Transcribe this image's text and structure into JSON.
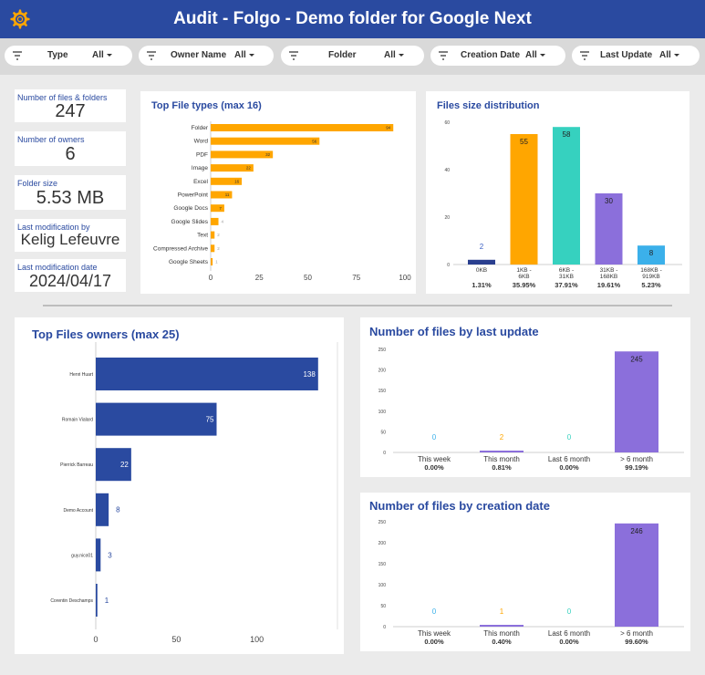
{
  "header": {
    "title": "Audit - Folgo - Demo folder for Google Next"
  },
  "filters": [
    {
      "label": "Type",
      "value": "All"
    },
    {
      "label": "Owner Name",
      "value": "All"
    },
    {
      "label": "Folder",
      "value": "All"
    },
    {
      "label": "Creation Date",
      "value": "All"
    },
    {
      "label": "Last Update",
      "value": "All"
    }
  ],
  "kpis": [
    {
      "label": "Number of files & folders",
      "value": "247"
    },
    {
      "label": "Number of owners",
      "value": "6"
    },
    {
      "label": "Folder size",
      "value": "5.53 MB"
    },
    {
      "label": "Last modification by",
      "value": "Kelig Lefeuvre"
    },
    {
      "label": "Last modification date",
      "value": "2024/04/17"
    }
  ],
  "colors": {
    "header": "#2a4aa0",
    "orange": "#ffa600",
    "teal": "#36d1bf",
    "purple": "#8b6fdb",
    "lightblue": "#3bb0ea",
    "navy": "#2a3f8f"
  },
  "chart_data": [
    {
      "id": "file_types",
      "type": "bar",
      "orientation": "horizontal",
      "title": "Top File types (max 16)",
      "categories": [
        "Folder",
        "Word",
        "PDF",
        "Image",
        "Excel",
        "PowerPoint",
        "Google Docs",
        "Google Slides",
        "Text",
        "Compressed Archive",
        "Google Sheets"
      ],
      "values": [
        94,
        56,
        32,
        22,
        16,
        11,
        7,
        4,
        2,
        2,
        1
      ],
      "xticks": [
        "0",
        "25",
        "50",
        "75",
        "100"
      ],
      "xlim": [
        0,
        100
      ],
      "color": "#ffa600"
    },
    {
      "id": "size_distribution",
      "type": "bar",
      "title": "Files size distribution",
      "categories": [
        "0KB",
        "1KB - 6KB",
        "6KB - 31KB",
        "31KB - 168KB",
        "168KB - 919KB"
      ],
      "values": [
        2,
        55,
        58,
        30,
        8
      ],
      "percents": [
        "1.31%",
        "35.95%",
        "37.91%",
        "19.61%",
        "5.23%"
      ],
      "colors": [
        "#2a3f8f",
        "#ffa600",
        "#36d1bf",
        "#8b6fdb",
        "#3bb0ea"
      ],
      "yticks": [
        "60",
        "40",
        "20",
        "0"
      ],
      "ylim": [
        0,
        60
      ]
    },
    {
      "id": "owners",
      "type": "bar",
      "orientation": "horizontal",
      "title": "Top Files owners (max 25)",
      "categories": [
        "Henri Huart",
        "Romain Vialard",
        "Pierrick Barreau",
        "Demo Account",
        "guy.nico01",
        "Corentin Deschamps"
      ],
      "values": [
        138,
        75,
        22,
        8,
        3,
        1
      ],
      "xticks": [
        "0",
        "50",
        "100"
      ],
      "xlim": [
        0,
        150
      ],
      "color": "#2a4aa0"
    },
    {
      "id": "last_update",
      "type": "bar",
      "title": "Number of files by last update",
      "categories": [
        "This week",
        "This month",
        "Last 6 month",
        "> 6 month"
      ],
      "values": [
        0,
        2,
        0,
        245
      ],
      "percents": [
        "0.00%",
        "0.81%",
        "0.00%",
        "99.19%"
      ],
      "label_colors": [
        "#3bb0ea",
        "#ffa600",
        "#36d1bf",
        "#222222"
      ],
      "bar_color": "#8b6fdb",
      "yticks": [
        "250",
        "200",
        "150",
        "100",
        "50",
        "0"
      ],
      "ylim": [
        0,
        250
      ]
    },
    {
      "id": "creation_date",
      "type": "bar",
      "title": "Number of files by creation date",
      "categories": [
        "This week",
        "This month",
        "Last 6 month",
        "> 6 month"
      ],
      "values": [
        0,
        1,
        0,
        246
      ],
      "percents": [
        "0.00%",
        "0.40%",
        "0.00%",
        "99.60%"
      ],
      "label_colors": [
        "#3bb0ea",
        "#ffa600",
        "#36d1bf",
        "#222222"
      ],
      "bar_color": "#8b6fdb",
      "yticks": [
        "250",
        "200",
        "150",
        "100",
        "50",
        "0"
      ],
      "ylim": [
        0,
        250
      ]
    }
  ]
}
